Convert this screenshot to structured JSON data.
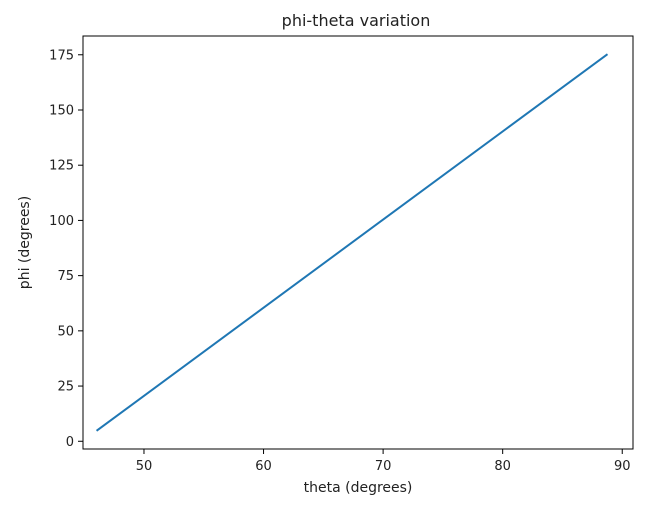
{
  "chart_data": {
    "type": "line",
    "title": "phi-theta variation",
    "xlabel": "theta (degrees)",
    "ylabel": "phi (degrees)",
    "xlim": [
      44.9,
      90.9
    ],
    "ylim": [
      -3.5,
      183.5
    ],
    "x_ticks": [
      50,
      60,
      70,
      80,
      90
    ],
    "y_ticks": [
      0,
      25,
      50,
      75,
      100,
      125,
      150,
      175
    ],
    "grid": false,
    "series": [
      {
        "x": [
          46.1,
          88.7
        ],
        "y": [
          5,
          175
        ],
        "color": "#1f77b4"
      }
    ]
  }
}
